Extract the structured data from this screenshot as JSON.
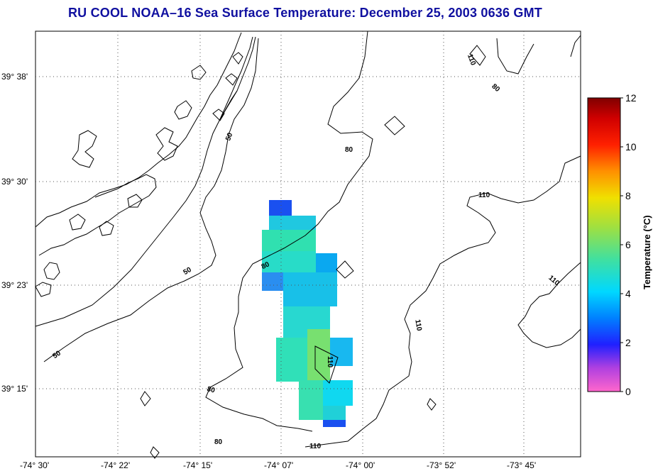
{
  "title": "RU COOL  NOAA–16  Sea Surface Temperature:  December 25, 2003 0636 GMT",
  "map": {
    "lat_ticks": [
      "39° 38'",
      "39° 30'",
      "39° 23'",
      "39° 15'"
    ],
    "lon_ticks": [
      "-74° 30'",
      "-74° 22'",
      "-74° 15'",
      "-74° 07'",
      "-74° 00'",
      "-73° 52'",
      "-73° 45'"
    ],
    "land_color": "#ffffff",
    "frame_color": "#000000"
  },
  "contours": {
    "labels": [
      "50",
      "50",
      "50",
      "50",
      "80",
      "80",
      "80",
      "80",
      "80",
      "110",
      "110",
      "110",
      "110",
      "110",
      "110"
    ]
  },
  "colorbar": {
    "title": "Temperature (°C)",
    "ticks": [
      "0",
      "2",
      "4",
      "6",
      "8",
      "10",
      "12"
    ],
    "range": [
      0,
      12
    ]
  },
  "sst_patches": [
    {
      "t": 2.0
    },
    {
      "t": 4.5
    },
    {
      "t": 5.0
    },
    {
      "t": 4.0
    },
    {
      "t": 3.0
    },
    {
      "t": 4.8
    },
    {
      "t": 5.2
    },
    {
      "t": 6.5
    },
    {
      "t": 4.2
    },
    {
      "t": 2.5
    }
  ]
}
